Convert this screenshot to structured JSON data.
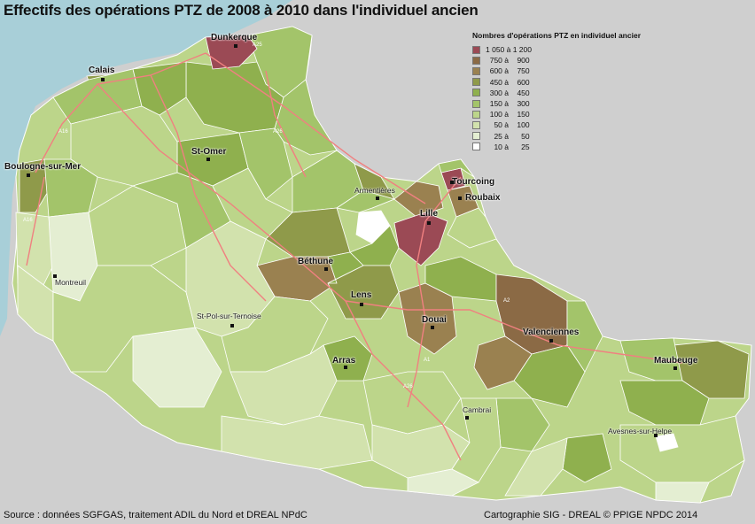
{
  "title": "Effectifs des opérations PTZ de 2008 à 2010 dans l'individuel ancien",
  "legend": {
    "title": "Nombres d'opérations PTZ en individuel ancier",
    "classes": [
      {
        "range": "1 050 à 1 200",
        "color": "#9b4a55"
      },
      {
        "range": "  750 à    900",
        "color": "#8b6a45"
      },
      {
        "range": "  600 à    750",
        "color": "#9a8150"
      },
      {
        "range": "  450 à    600",
        "color": "#8f9a4a"
      },
      {
        "range": "  300 à    450",
        "color": "#8fb04e"
      },
      {
        "range": "  150 à    300",
        "color": "#a3c46a"
      },
      {
        "range": "  100 à    150",
        "color": "#bcd58a"
      },
      {
        "range": "    50 à    100",
        "color": "#d2e2ad"
      },
      {
        "range": "    25 à      50",
        "color": "#e4eed2"
      },
      {
        "range": "    10 à      25",
        "color": "#ffffff"
      }
    ]
  },
  "cities": [
    {
      "name": "Dunkerque",
      "major": true
    },
    {
      "name": "Calais",
      "major": true
    },
    {
      "name": "Boulogne-sur-Mer",
      "major": true
    },
    {
      "name": "St-Omer",
      "major": true
    },
    {
      "name": "Armentières",
      "major": false
    },
    {
      "name": "Tourcoing",
      "major": true
    },
    {
      "name": "Roubaix",
      "major": true
    },
    {
      "name": "Lille",
      "major": true
    },
    {
      "name": "Béthune",
      "major": true
    },
    {
      "name": "Montreuil",
      "major": false
    },
    {
      "name": "Lens",
      "major": true
    },
    {
      "name": "St-Pol-sur-Ternoise",
      "major": false
    },
    {
      "name": "Douai",
      "major": true
    },
    {
      "name": "Valenciennes",
      "major": true
    },
    {
      "name": "Arras",
      "major": true
    },
    {
      "name": "Maubeuge",
      "major": true
    },
    {
      "name": "Cambrai",
      "major": false
    },
    {
      "name": "Avesnes-sur-Helpe",
      "major": false
    }
  ],
  "road_labels": [
    "A16",
    "A16",
    "A25",
    "A26",
    "A21",
    "A1",
    "A26",
    "A2"
  ],
  "colors": {
    "sea": "#a8cfd8",
    "land_outside": "#cfcfcf",
    "roads": "#f08080"
  },
  "footer": {
    "source": "Source : données SGFGAS, traitement ADIL du Nord et DREAL NPdC",
    "credit": "Cartographie SIG - DREAL © PPIGE NPDC 2014"
  }
}
